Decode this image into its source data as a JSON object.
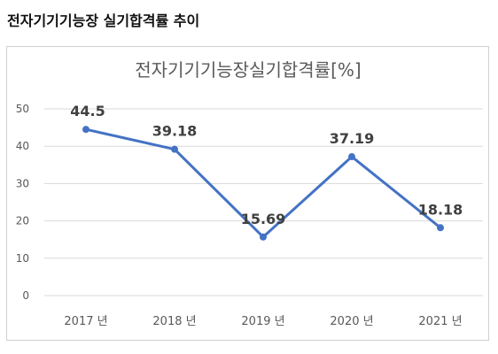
{
  "page": {
    "heading": "전자기기기능장 실기합격률 추이"
  },
  "colors": {
    "line": "#4472c4",
    "grid": "#d9d9d9"
  },
  "chart_data": {
    "type": "line",
    "title": "전자기기기능장실기합격률[%]",
    "categories": [
      "2017 년",
      "2018 년",
      "2019 년",
      "2020 년",
      "2021 년"
    ],
    "series": [
      {
        "values": [
          44.5,
          39.18,
          15.69,
          37.19,
          18.18
        ]
      }
    ],
    "data_labels": [
      "44.5",
      "39.18",
      "15.69",
      "37.19",
      "18.18"
    ],
    "yticks": [
      "0",
      "10",
      "20",
      "30",
      "40",
      "50"
    ],
    "ylim": [
      0,
      50
    ],
    "grid": true,
    "legend": "none"
  }
}
